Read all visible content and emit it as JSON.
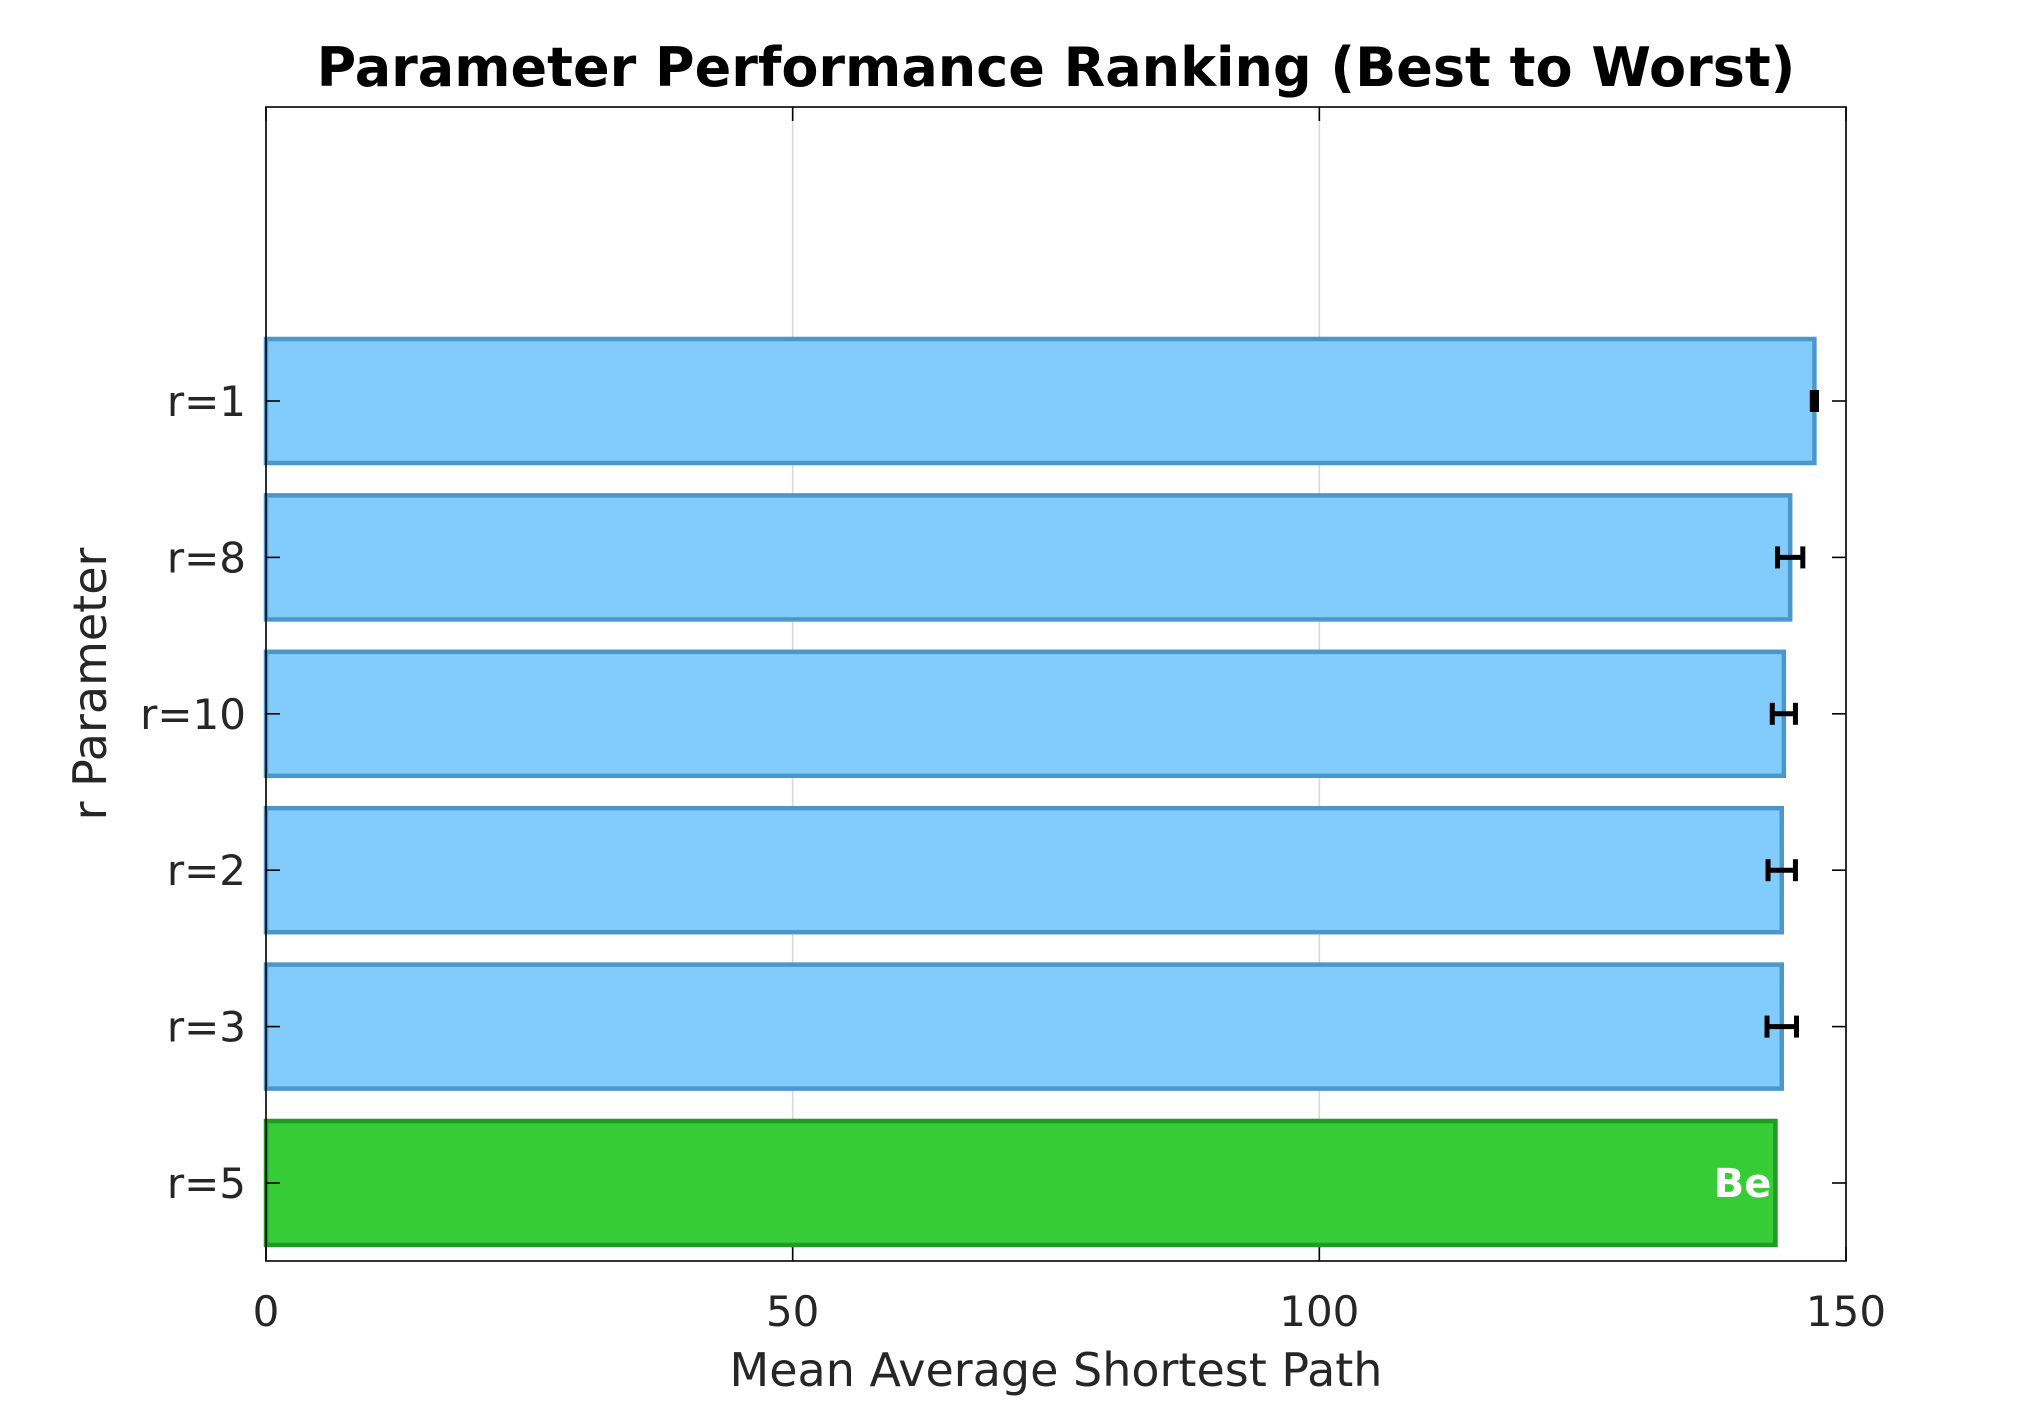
{
  "chart_data": {
    "type": "bar",
    "orientation": "horizontal",
    "title": "Parameter Performance Ranking (Best to Worst)",
    "xlabel": "Mean Average Shortest Path",
    "ylabel": "r Parameter",
    "xlim": [
      0,
      150
    ],
    "xticks": [
      "0",
      "50",
      "100",
      "150"
    ],
    "grid": "x",
    "categories": [
      "r=1",
      "r=8",
      "r=10",
      "r=2",
      "r=3",
      "r=5"
    ],
    "values": [
      147.0,
      144.7,
      144.1,
      143.9,
      143.9,
      143.3
    ],
    "errors": [
      0.2,
      1.2,
      1.1,
      1.3,
      1.4,
      0.0
    ],
    "highlight_index": 5,
    "highlight_label": "Be",
    "colors": {
      "bar_fill": "#82cbfd",
      "bar_edge": "#4a97cc",
      "best_fill": "#35cc35",
      "best_edge": "#1f9a24",
      "grid": "#d9d9d9",
      "axis": "#000000",
      "error": "#000000"
    }
  }
}
